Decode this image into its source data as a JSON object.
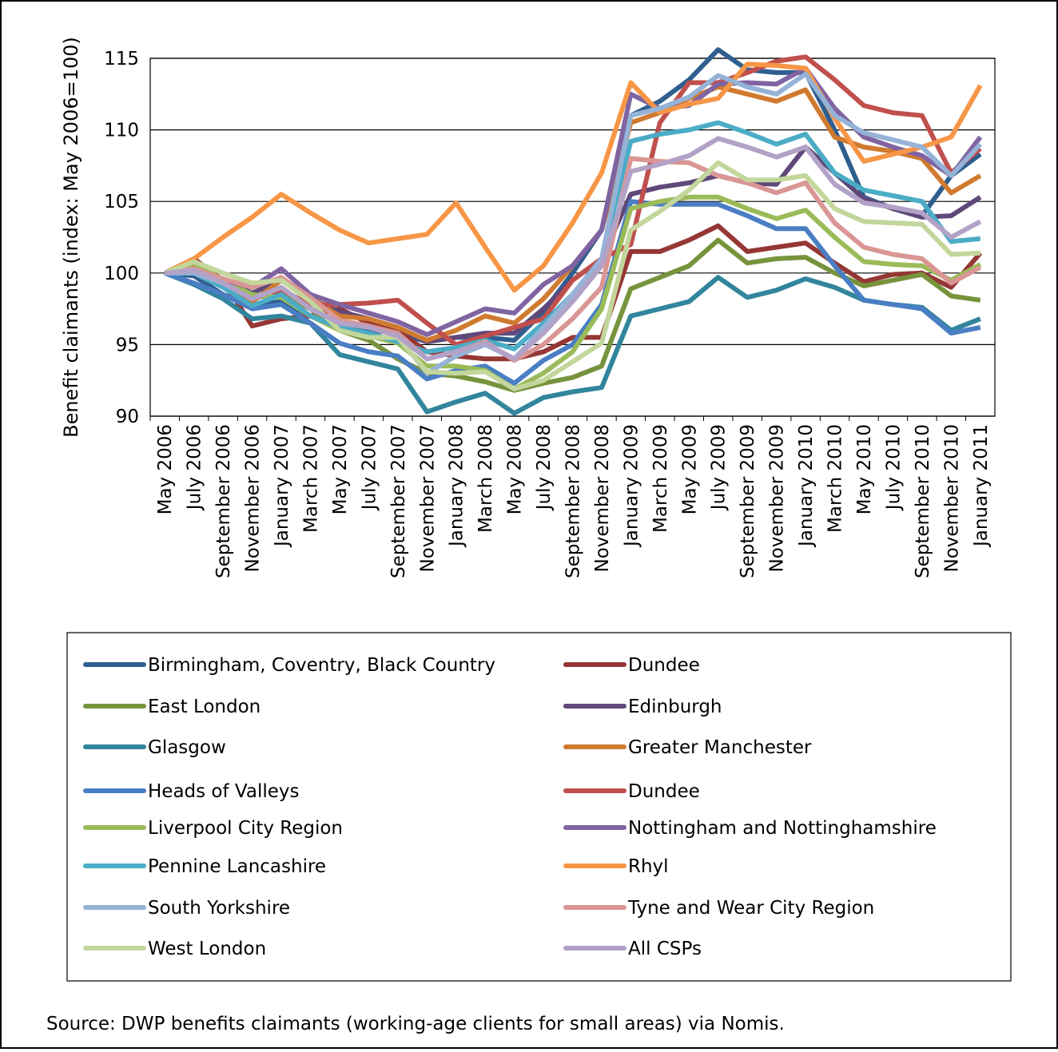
{
  "chart_data": {
    "type": "line",
    "ylabel": "Benefit claimants (index: May 2006=100)",
    "source": "Source: DWP benefits claimants (working-age clients for small areas) via Nomis.",
    "categories": [
      "May 2006",
      "July 2006",
      "September 2006",
      "November 2006",
      "January 2007",
      "March 2007",
      "May 2007",
      "July 2007",
      "September 2007",
      "November 2007",
      "January 2008",
      "March 2008",
      "May 2008",
      "July 2008",
      "September 2008",
      "November 2008",
      "January 2009",
      "March 2009",
      "May 2009",
      "July 2009",
      "September 2009",
      "November 2009",
      "January 2010",
      "March 2010",
      "May 2010",
      "July 2010",
      "September 2010",
      "November 2010",
      "January 2011"
    ],
    "ylim": [
      90,
      115
    ],
    "yticks": [
      90,
      95,
      100,
      105,
      110,
      115
    ],
    "grid": true,
    "legend": "bottom",
    "series": [
      {
        "name": "Birmingham, Coventry, Black Country",
        "color": "#2f5f8f",
        "values": [
          100,
          99.8,
          98.5,
          97.8,
          98,
          97,
          96.3,
          96,
          95.8,
          95.2,
          95.5,
          95.5,
          95.3,
          97.3,
          100,
          103,
          111,
          112,
          113.5,
          115.6,
          114.2,
          114,
          114,
          110,
          105.3,
          104.5,
          104,
          106.8,
          108.3
        ]
      },
      {
        "name": "Dundee",
        "color": "#953735",
        "values": [
          100,
          101,
          99.5,
          96.3,
          96.8,
          97,
          97.5,
          96.5,
          96,
          94.5,
          94.2,
          94,
          94,
          94.5,
          95.5,
          95.5,
          101.5,
          101.5,
          102.3,
          103.3,
          101.5,
          101.8,
          102.1,
          100.7,
          99.4,
          99.9,
          100,
          99,
          101.4
        ]
      },
      {
        "name": "East London",
        "color": "#77933c",
        "values": [
          100,
          100.3,
          99,
          98.3,
          98.5,
          97.5,
          96,
          95.3,
          94,
          93,
          92.8,
          92.4,
          91.8,
          92.3,
          92.7,
          93.5,
          98.9,
          99.7,
          100.5,
          102.3,
          100.7,
          101,
          101.1,
          100,
          99.1,
          99.5,
          99.9,
          98.4,
          98.1
        ]
      },
      {
        "name": "Edinburgh",
        "color": "#5f497a",
        "values": [
          100,
          100.3,
          99.5,
          98.6,
          99.5,
          98.2,
          97.3,
          96.8,
          96.2,
          95.2,
          95.5,
          95.8,
          95.8,
          97.5,
          99.5,
          101,
          105.5,
          106,
          106.3,
          106.8,
          106.3,
          106.2,
          108.8,
          107,
          105.2,
          104.5,
          103.9,
          104,
          105.3
        ]
      },
      {
        "name": "Glasgow",
        "color": "#31859c",
        "values": [
          100,
          99.2,
          98.2,
          96.8,
          97,
          96.5,
          94.3,
          93.8,
          93.3,
          90.3,
          91,
          91.6,
          90.2,
          91.3,
          91.7,
          92,
          97,
          97.5,
          98,
          99.7,
          98.3,
          98.8,
          99.6,
          99,
          98.1,
          97.8,
          97.6,
          96,
          96.8
        ]
      },
      {
        "name": "Greater Manchester",
        "color": "#d07a30",
        "values": [
          100,
          100.5,
          99.2,
          98,
          99.5,
          98.3,
          97,
          96.8,
          96.2,
          95.3,
          96,
          97,
          96.5,
          98.2,
          100.5,
          103,
          110.5,
          111.2,
          112.2,
          113,
          112.5,
          112,
          112.8,
          109.5,
          108.8,
          108.5,
          108,
          105.6,
          106.8
        ]
      },
      {
        "name": "Heads of Valleys",
        "color": "#4a7ec4",
        "values": [
          100,
          99.3,
          98.5,
          97.5,
          97.8,
          96.5,
          95.1,
          94.5,
          94.2,
          92.6,
          93.2,
          93.5,
          92.3,
          93.9,
          95,
          97.8,
          105,
          104.8,
          104.8,
          104.8,
          104,
          103.1,
          103.1,
          100.5,
          98.1,
          97.8,
          97.5,
          95.8,
          96.2
        ]
      },
      {
        "name": "Dundee ",
        "color": "#c0504d",
        "values": [
          100,
          100.2,
          99.5,
          98.2,
          98.8,
          97.8,
          97.8,
          97.9,
          98.1,
          96.5,
          95,
          95.6,
          96.2,
          96.8,
          99.5,
          101,
          102,
          110.5,
          113.3,
          113.3,
          114,
          114.8,
          115.1,
          113.5,
          111.7,
          111.2,
          111,
          107,
          108.7
        ]
      },
      {
        "name": "Liverpool City Region",
        "color": "#9bbb59",
        "values": [
          100,
          100.7,
          99.5,
          98.5,
          98.3,
          97,
          96,
          95.6,
          95.1,
          93.5,
          93.5,
          93.2,
          91.9,
          93,
          94.5,
          97.5,
          104.5,
          105,
          105.3,
          105.3,
          104.5,
          103.8,
          104.4,
          102.5,
          100.8,
          100.6,
          100.5,
          99.5,
          100.6
        ]
      },
      {
        "name": "Nottingham and Nottinghamshire",
        "color": "#8064a2",
        "values": [
          100,
          100.3,
          99.5,
          99,
          100.3,
          98.5,
          97.8,
          97.2,
          96.6,
          95.7,
          96.6,
          97.5,
          97.2,
          99.2,
          100.5,
          103,
          112.5,
          111.5,
          111.7,
          113.2,
          113.3,
          113.2,
          114.3,
          111.5,
          109.5,
          108.8,
          108.2,
          106.8,
          109.5
        ]
      },
      {
        "name": "Pennine Lancashire",
        "color": "#4bacc6",
        "values": [
          100,
          100,
          99,
          97.7,
          98.5,
          97,
          96.2,
          95.8,
          95.2,
          94.5,
          94.8,
          95.3,
          94.7,
          96.5,
          98.5,
          101,
          109.2,
          109.7,
          110,
          110.5,
          109.8,
          109,
          109.7,
          107,
          105.8,
          105.4,
          105,
          102.2,
          102.4
        ]
      },
      {
        "name": "Rhyl",
        "color": "#f79646",
        "values": [
          100,
          101,
          102.5,
          103.9,
          105.5,
          104.2,
          103,
          102.1,
          102.4,
          102.7,
          104.9,
          101.8,
          98.8,
          100.5,
          103.5,
          107,
          113.3,
          111.2,
          111.8,
          112.2,
          114.6,
          114.5,
          114.3,
          110.8,
          107.8,
          108.3,
          108.8,
          109.5,
          113.1
        ]
      },
      {
        "name": "South Yorkshire",
        "color": "#95b3d7",
        "values": [
          100,
          100,
          99.3,
          98.2,
          99,
          97.5,
          96.5,
          96.3,
          95.6,
          93,
          94.2,
          95,
          94,
          96.2,
          98.5,
          101,
          111,
          111.5,
          112.3,
          113.8,
          113,
          112.5,
          113.9,
          111,
          109.8,
          109.3,
          108.8,
          106.8,
          109
        ]
      },
      {
        "name": "Tyne and Wear City Region",
        "color": "#d99694",
        "values": [
          100,
          100.3,
          99.6,
          99,
          99.7,
          98.3,
          96.7,
          96.3,
          95.8,
          94,
          94.5,
          95.2,
          93.9,
          95,
          96.8,
          99,
          108,
          107.8,
          107.7,
          106.8,
          106.3,
          105.6,
          106.3,
          103.5,
          101.8,
          101.3,
          101,
          99.3,
          100.4
        ]
      },
      {
        "name": "West London",
        "color": "#c3d69b",
        "values": [
          100,
          100.8,
          100,
          99.3,
          99.5,
          98,
          96,
          95.5,
          95.5,
          93.1,
          93,
          93.1,
          91.9,
          92.5,
          93.8,
          95.1,
          103,
          104.3,
          105.8,
          107.7,
          106.5,
          106.5,
          106.8,
          104.5,
          103.6,
          103.5,
          103.4,
          101.3,
          101.4
        ]
      },
      {
        "name": "All CSPs",
        "color": "#b3a2c7",
        "values": [
          100,
          100.2,
          99.3,
          98.2,
          99,
          97.5,
          96.5,
          96.2,
          95.6,
          94,
          94.5,
          95.1,
          94,
          95.8,
          98,
          100.5,
          107.1,
          107.6,
          108.2,
          109.4,
          108.8,
          108.1,
          108.8,
          106.2,
          104.9,
          104.6,
          104.2,
          102.5,
          103.6
        ]
      }
    ]
  }
}
